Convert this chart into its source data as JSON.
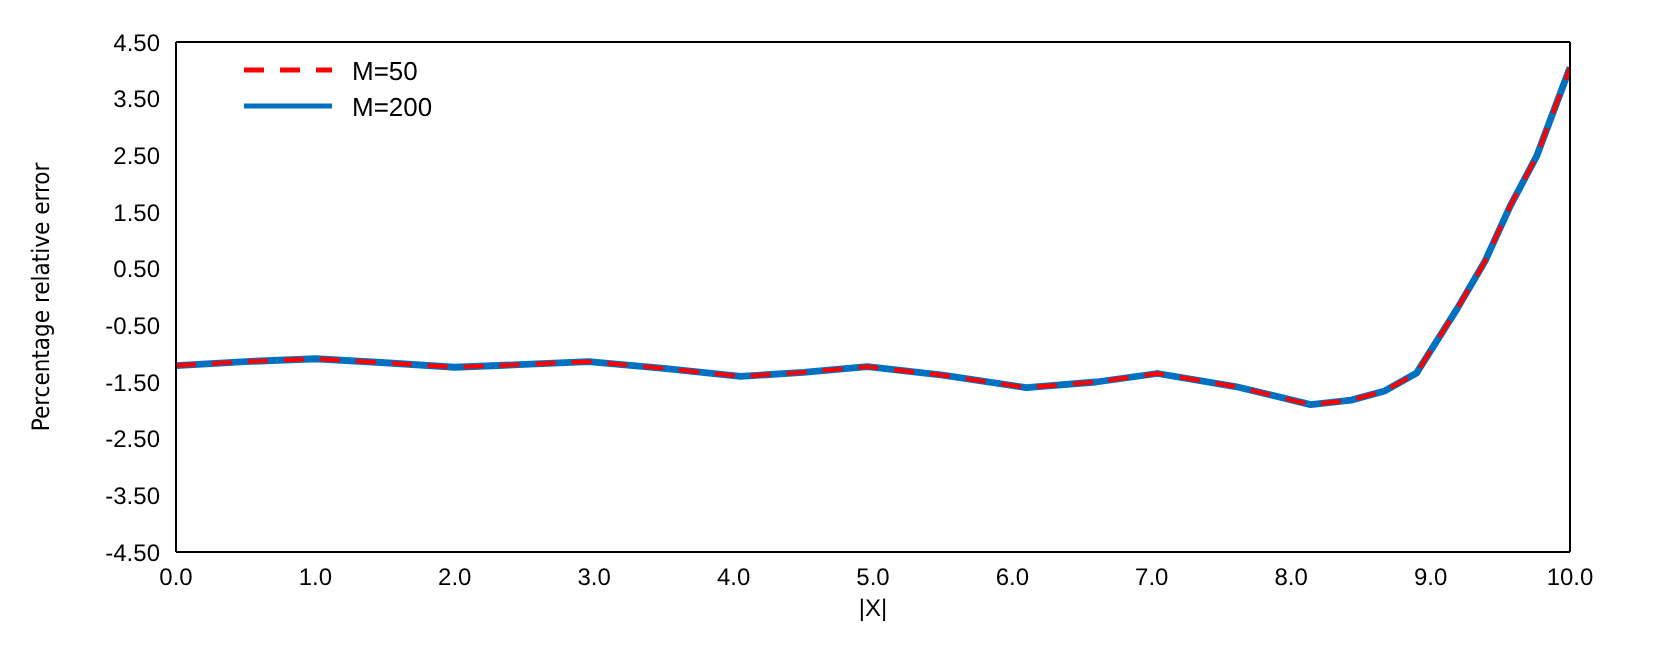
{
  "chart_data": {
    "type": "line",
    "xlabel": "|X|",
    "ylabel": "Percentage relative error",
    "x": [
      0,
      0.5,
      1.0,
      1.5,
      2.0,
      2.5,
      2.96,
      3.5,
      4.05,
      4.5,
      4.96,
      5.5,
      6.1,
      6.6,
      7.04,
      7.6,
      8.14,
      8.43,
      8.67,
      8.9,
      9.19,
      9.39,
      9.57,
      9.76,
      10.0
    ],
    "series": [
      {
        "name": "M=50",
        "color": "#ff0000",
        "line_style": "dashed",
        "values": [
          -1.21,
          -1.14,
          -1.09,
          -1.16,
          -1.24,
          -1.19,
          -1.14,
          -1.26,
          -1.4,
          -1.33,
          -1.23,
          -1.38,
          -1.6,
          -1.5,
          -1.35,
          -1.58,
          -1.9,
          -1.82,
          -1.66,
          -1.34,
          -0.21,
          0.63,
          1.6,
          2.48,
          4.05
        ]
      },
      {
        "name": "M=200",
        "color": "#0070c0",
        "line_style": "solid",
        "values": [
          -1.21,
          -1.14,
          -1.09,
          -1.16,
          -1.24,
          -1.19,
          -1.14,
          -1.26,
          -1.4,
          -1.33,
          -1.23,
          -1.38,
          -1.6,
          -1.5,
          -1.35,
          -1.58,
          -1.9,
          -1.82,
          -1.66,
          -1.34,
          -0.21,
          0.63,
          1.6,
          2.48,
          4.05
        ]
      }
    ],
    "xlim": [
      0,
      10
    ],
    "xticks": [
      {
        "value": 0,
        "label": "0.0"
      },
      {
        "value": 1,
        "label": "1.0"
      },
      {
        "value": 2,
        "label": "2.0"
      },
      {
        "value": 3,
        "label": "3.0"
      },
      {
        "value": 4,
        "label": "4.0"
      },
      {
        "value": 5,
        "label": "5.0"
      },
      {
        "value": 6,
        "label": "6.0"
      },
      {
        "value": 7,
        "label": "7.0"
      },
      {
        "value": 8,
        "label": "8.0"
      },
      {
        "value": 9,
        "label": "9.0"
      },
      {
        "value": 10,
        "label": "10.0"
      }
    ],
    "ylim": [
      -4.5,
      4.5
    ],
    "yticks": [
      {
        "value": -4.5,
        "label": "-4.50"
      },
      {
        "value": -3.5,
        "label": "-3.50"
      },
      {
        "value": -2.5,
        "label": "-2.50"
      },
      {
        "value": -1.5,
        "label": "-1.50"
      },
      {
        "value": -0.5,
        "label": "-0.50"
      },
      {
        "value": 0.5,
        "label": "0.50"
      },
      {
        "value": 1.5,
        "label": "1.50"
      },
      {
        "value": 2.5,
        "label": "2.50"
      },
      {
        "value": 3.5,
        "label": "3.50"
      },
      {
        "value": 4.5,
        "label": "4.50"
      }
    ],
    "legend": "top left",
    "marker": "none"
  }
}
